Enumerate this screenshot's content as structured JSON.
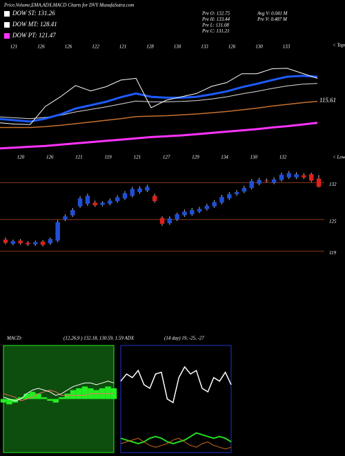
{
  "header": {
    "title": "Price,Volume,EMA,ADX,MACD Charts for DVY MunafaSutra.com",
    "legend": [
      {
        "label": "DOW ST: 131.26",
        "color": "#ffffff"
      },
      {
        "label": "DOW MT: 128.41",
        "color": "#ffffff"
      },
      {
        "label": "DOW PT: 121.47",
        "color": "#ff33ff"
      }
    ],
    "stats": [
      [
        "Pre O: 132.75",
        "Avg V: 0.041 M"
      ],
      [
        "Pre H: 133.44",
        "Pre V: 0.487 M"
      ],
      [
        "Pre L: 131.08"
      ],
      [
        "Pre C: 131.21"
      ]
    ],
    "macd_label": "MACD:",
    "macd_params": "(12,26,9 ) 132.18, 130.59, 1.59 ADX",
    "adx_params": "(14 day) 19, -25, -27"
  },
  "chart_data": [
    {
      "type": "line",
      "ylim": [
        112,
        140
      ],
      "top_labels": [
        121,
        126,
        126,
        122,
        121,
        128,
        130,
        133,
        126,
        130,
        133
      ],
      "bottom_labels": [
        120,
        126,
        121,
        119,
        121,
        127,
        129,
        134,
        130,
        132
      ],
      "tops_label": "< Tops",
      "lows_label": "< Lows",
      "last_label": "115.61",
      "series": [
        {
          "color": "#ff33ff",
          "width": 3,
          "values": [
            114.5,
            114.7,
            114.9,
            115.1,
            115.4,
            115.7,
            116.0,
            116.3,
            116.6,
            116.9,
            117.2,
            117.4,
            117.6,
            117.9,
            118.2,
            118.5,
            118.8,
            119.1,
            119.5,
            119.8,
            120.2,
            120.6
          ]
        },
        {
          "color": "#c8702e",
          "width": 1.5,
          "values": [
            119.5,
            119.5,
            119.5,
            119.7,
            120.0,
            120.4,
            120.8,
            121.2,
            121.6,
            122.1,
            122.2,
            122.3,
            122.5,
            122.7,
            123.0,
            123.3,
            123.7,
            124.1,
            124.6,
            125.0,
            125.4,
            125.7
          ]
        },
        {
          "color": "#dddddd",
          "width": 1,
          "values": [
            122.0,
            121.8,
            121.6,
            121.9,
            122.4,
            123.2,
            123.8,
            124.4,
            125.1,
            125.8,
            125.6,
            125.6,
            125.7,
            125.9,
            126.3,
            126.8,
            127.5,
            128.1,
            128.8,
            129.4,
            129.8,
            130.0
          ]
        },
        {
          "color": "#1e5bff",
          "width": 3,
          "values": [
            121.5,
            121.2,
            120.9,
            121.6,
            122.6,
            124.0,
            124.8,
            125.6,
            126.7,
            127.6,
            126.8,
            126.6,
            126.6,
            126.8,
            127.4,
            128.1,
            129.1,
            129.9,
            130.8,
            131.6,
            131.8,
            131.6
          ]
        },
        {
          "color": "#ffffff",
          "width": 1,
          "values": [
            120.6,
            120.3,
            120.2,
            124.5,
            126.8,
            129.5,
            128.2,
            129.2,
            130.8,
            131.2,
            124.2,
            126.0,
            126.8,
            127.6,
            129.3,
            130.2,
            132.3,
            132.3,
            133.5,
            133.6,
            132.4,
            131.2
          ]
        }
      ]
    },
    {
      "type": "candlestick",
      "ylim": [
        117.5,
        136.5
      ],
      "yticks": [
        132,
        125,
        119
      ],
      "grid_color": "#8a3a12",
      "up_color": "#1f4fd6",
      "down_color": "#e0201b",
      "open": [
        121.2,
        120.4,
        121.0,
        120.6,
        120.3,
        120.8,
        120.5,
        121.0,
        125.0,
        125.8,
        127.5,
        128.0,
        128.2,
        127.8,
        128.0,
        128.5,
        129.0,
        129.5,
        130.2,
        130.5,
        129.5,
        125.3,
        124.3,
        125.0,
        125.8,
        126.0,
        126.5,
        127.0,
        127.5,
        128.2,
        129.0,
        129.8,
        130.3,
        131.0,
        131.8,
        132.4,
        132.0,
        132.5,
        133.0,
        133.0,
        133.4,
        133.6,
        132.75
      ],
      "high": [
        121.6,
        121.2,
        121.3,
        120.9,
        121.0,
        121.1,
        121.6,
        124.9,
        126.0,
        127.2,
        129.4,
        129.9,
        128.6,
        128.5,
        129.0,
        129.6,
        130.4,
        131.2,
        131.3,
        131.6,
        129.9,
        125.6,
        125.6,
        126.3,
        126.9,
        127.2,
        127.4,
        128.0,
        128.7,
        129.7,
        130.2,
        130.6,
        131.4,
        132.7,
        132.9,
        132.8,
        133.0,
        133.9,
        134.2,
        134.0,
        133.8,
        133.9,
        133.44
      ],
      "low": [
        120.3,
        120.1,
        120.2,
        120.0,
        120.0,
        119.9,
        120.2,
        120.7,
        124.7,
        125.5,
        127.2,
        127.6,
        127.4,
        127.5,
        127.7,
        128.2,
        128.7,
        129.2,
        129.9,
        130.2,
        128.2,
        123.8,
        124.0,
        124.7,
        125.5,
        125.7,
        126.2,
        126.7,
        127.2,
        127.9,
        128.7,
        129.5,
        130.0,
        130.7,
        131.5,
        132.0,
        131.7,
        132.2,
        132.7,
        132.7,
        132.7,
        132.1,
        131.08
      ],
      "close": [
        120.6,
        120.9,
        120.5,
        120.3,
        120.7,
        120.2,
        121.3,
        124.5,
        125.6,
        126.8,
        129.0,
        129.5,
        127.7,
        128.2,
        128.6,
        129.2,
        130.0,
        130.8,
        130.9,
        131.2,
        128.5,
        124.2,
        125.2,
        126.0,
        126.5,
        126.8,
        127.0,
        127.6,
        128.3,
        129.3,
        129.8,
        130.2,
        131.0,
        132.3,
        132.5,
        132.3,
        132.6,
        133.5,
        133.8,
        133.6,
        133.0,
        132.4,
        131.21
      ]
    },
    {
      "type": "bar",
      "ylim": [
        -3,
        3
      ],
      "color": "#22ee22",
      "background": "#0d4d0d",
      "values": [
        -0.2,
        -0.3,
        -0.2,
        0.1,
        0.3,
        0.4,
        0.3,
        0.1,
        -0.1,
        -0.2,
        0.1,
        0.3,
        0.5,
        0.6,
        0.7,
        0.6,
        0.5,
        0.6,
        0.7,
        0.6
      ],
      "series": [
        {
          "color": "#ff6666",
          "values": [
            0.3,
            0.2,
            0.1,
            -0.1,
            0.0,
            0.1,
            0.3,
            0.4,
            0.5,
            0.4,
            0.2,
            0.2,
            0.2,
            0.2,
            0.2,
            0.3,
            0.3,
            0.3,
            0.3,
            0.3
          ]
        },
        {
          "color": "#ffffff",
          "values": [
            0.1,
            0.0,
            -0.1,
            0.0,
            0.3,
            0.5,
            0.6,
            0.5,
            0.4,
            0.2,
            0.3,
            0.5,
            0.7,
            0.8,
            0.9,
            0.9,
            0.8,
            0.9,
            1.0,
            0.9
          ]
        }
      ]
    },
    {
      "type": "line",
      "ylim": [
        0,
        60
      ],
      "background": "#000000",
      "border": "#2233cc",
      "series": [
        {
          "color": "#ffffff",
          "width": 1.5,
          "values": [
            40,
            44,
            42,
            46,
            38,
            36,
            44,
            45,
            30,
            28,
            42,
            48,
            44,
            46,
            36,
            34,
            42,
            40,
            45,
            38
          ]
        },
        {
          "color": "#22dd22",
          "width": 2,
          "values": [
            8,
            7,
            6,
            5,
            6,
            8,
            9,
            8,
            6,
            5,
            6,
            7,
            9,
            11,
            10,
            9,
            8,
            9,
            8,
            6
          ]
        },
        {
          "color": "#d2691e",
          "width": 1,
          "values": [
            5,
            6,
            7,
            8,
            6,
            4,
            3,
            4,
            5,
            7,
            8,
            6,
            4,
            3,
            5,
            6,
            4,
            3,
            2,
            3
          ]
        }
      ]
    }
  ]
}
